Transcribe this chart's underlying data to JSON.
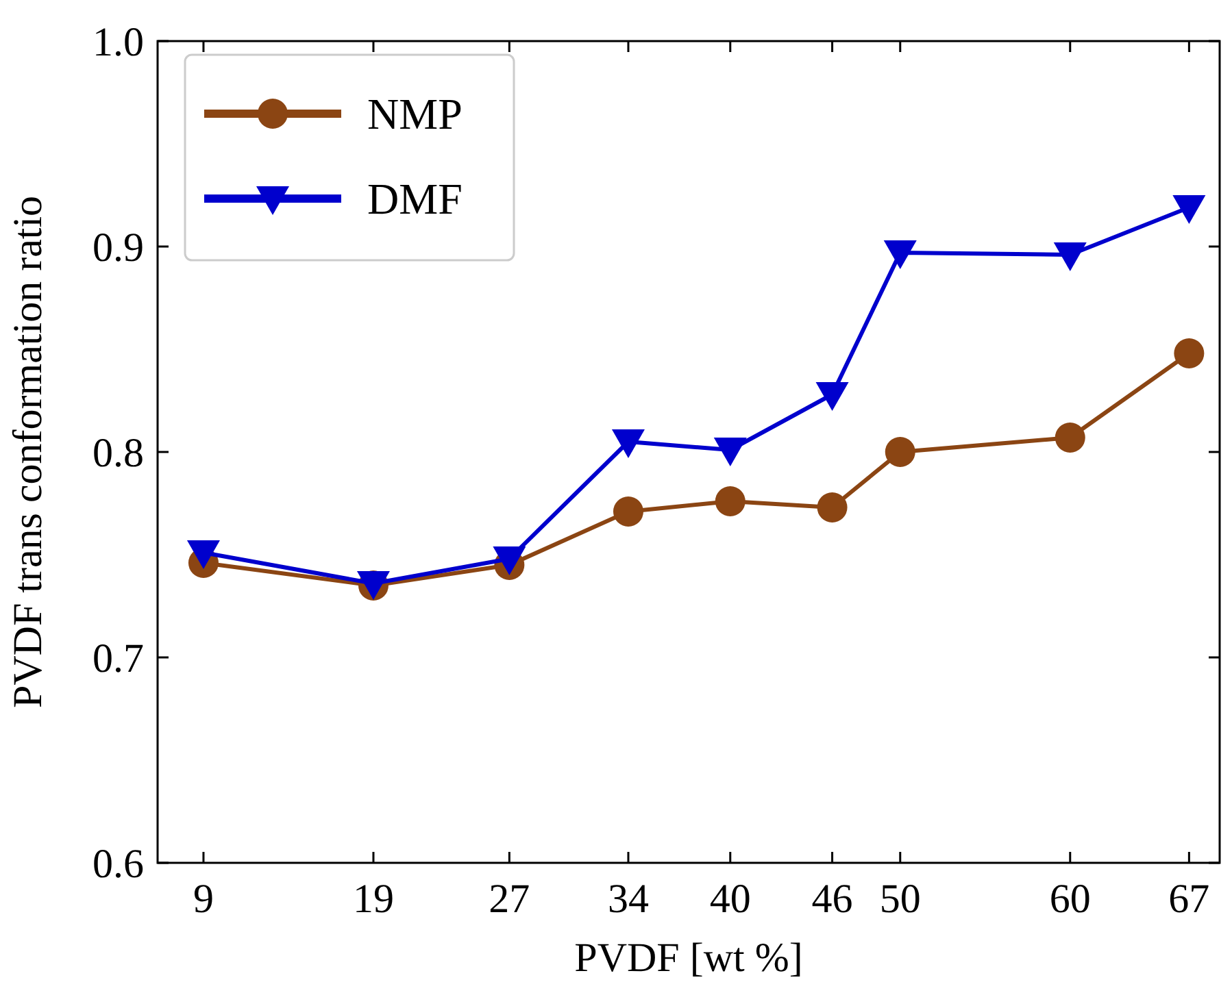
{
  "chart_data": {
    "type": "line",
    "xlabel": "PVDF [wt %]",
    "ylabel": "PVDF trans conformation ratio",
    "xlim": [
      6.3,
      68.8
    ],
    "xticks": [
      9,
      19,
      27,
      34,
      40,
      46,
      50,
      60,
      67
    ],
    "ylim": [
      0.6,
      1.0
    ],
    "yticks": [
      {
        "value": 0.6,
        "label": "0.6"
      },
      {
        "value": 0.7,
        "label": "0.7"
      },
      {
        "value": 0.8,
        "label": "0.8"
      },
      {
        "value": 0.9,
        "label": "0.9"
      },
      {
        "value": 1.0,
        "label": "1.0"
      }
    ],
    "x": [
      9,
      19,
      27,
      34,
      40,
      46,
      50,
      60,
      67
    ],
    "legend": "top left",
    "grid": false,
    "line_style": "solid",
    "series": [
      {
        "name": "NMP",
        "color": "#8b4513",
        "marker": "circle",
        "values": [
          0.746,
          0.735,
          0.745,
          0.771,
          0.776,
          0.773,
          0.8,
          0.807,
          0.848
        ]
      },
      {
        "name": "DMF",
        "color": "#0000cd",
        "marker": "triangle",
        "values": [
          0.751,
          0.736,
          0.748,
          0.805,
          0.801,
          0.828,
          0.897,
          0.896,
          0.919
        ]
      }
    ]
  }
}
